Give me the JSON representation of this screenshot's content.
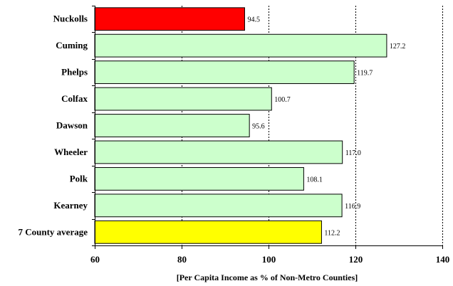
{
  "chart_data": {
    "type": "bar",
    "orientation": "horizontal",
    "categories": [
      "Nuckolls",
      "Cuming",
      "Phelps",
      "Colfax",
      "Dawson",
      "Wheeler",
      "Polk",
      "Kearney",
      "7 County average"
    ],
    "values": [
      94.5,
      127.2,
      119.7,
      100.7,
      95.6,
      117.0,
      108.1,
      116.9,
      112.2
    ],
    "value_labels": [
      "94.5",
      "127.2",
      "119.7",
      "100.7",
      "95.6",
      "117.0",
      "108.1",
      "116.9",
      "112.2"
    ],
    "bar_colors": [
      "#ff0000",
      "#ccffcc",
      "#ccffcc",
      "#ccffcc",
      "#ccffcc",
      "#ccffcc",
      "#ccffcc",
      "#ccffcc",
      "#ffff00"
    ],
    "xlabel": "[Per Capita Income as % of Non-Metro Counties]",
    "xlim": [
      60,
      140
    ],
    "xticks": [
      60,
      80,
      100,
      120,
      140
    ],
    "grid": "vertical dotted",
    "legend": "none"
  }
}
